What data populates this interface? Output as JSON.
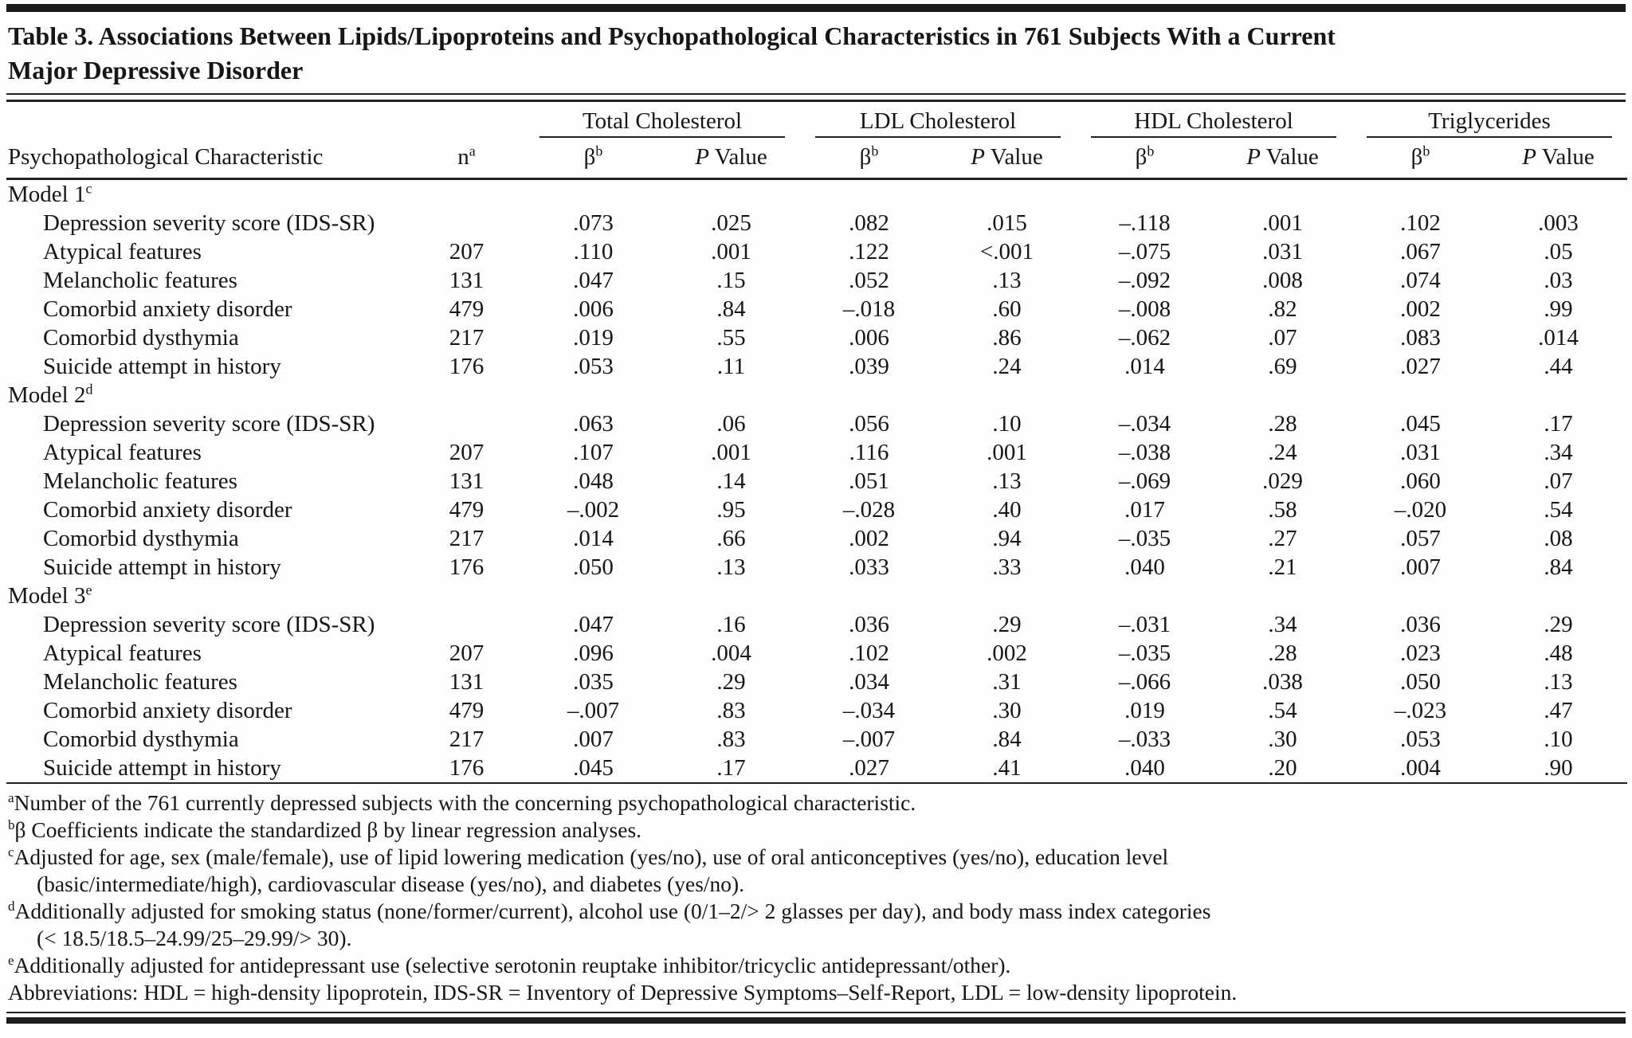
{
  "title": {
    "line1": "Table 3. Associations Between Lipids/Lipoproteins and Psychopathological Characteristics in 761 Subjects With a Current",
    "line2": "Major Depressive Disorder"
  },
  "header": {
    "characteristic": "Psychopathological Characteristic",
    "n_label": "n",
    "n_sup": "a",
    "beta_label": "β",
    "beta_sup": "b",
    "p_italic": "P",
    "p_rest": " Value",
    "groups": [
      "Total Cholesterol",
      "LDL Cholesterol",
      "HDL Cholesterol",
      "Triglycerides"
    ]
  },
  "chart_data": {
    "type": "table",
    "columns": [
      "Psychopathological Characteristic",
      "n",
      "Total Cholesterol β",
      "Total Cholesterol P Value",
      "LDL Cholesterol β",
      "LDL Cholesterol P Value",
      "HDL Cholesterol β",
      "HDL Cholesterol P Value",
      "Triglycerides β",
      "Triglycerides P Value"
    ]
  },
  "sections": [
    {
      "label": "Model 1",
      "sup": "c",
      "rows": [
        {
          "name": "Depression severity score (IDS-SR)",
          "n": "",
          "values": [
            ".073",
            ".025",
            ".082",
            ".015",
            "–.118",
            ".001",
            ".102",
            ".003"
          ]
        },
        {
          "name": "Atypical features",
          "n": "207",
          "values": [
            ".110",
            ".001",
            ".122",
            "<.001",
            "–.075",
            ".031",
            ".067",
            ".05"
          ]
        },
        {
          "name": "Melancholic features",
          "n": "131",
          "values": [
            ".047",
            ".15",
            ".052",
            ".13",
            "–.092",
            ".008",
            ".074",
            ".03"
          ]
        },
        {
          "name": "Comorbid anxiety disorder",
          "n": "479",
          "values": [
            ".006",
            ".84",
            "–.018",
            ".60",
            "–.008",
            ".82",
            ".002",
            ".99"
          ]
        },
        {
          "name": "Comorbid dysthymia",
          "n": "217",
          "values": [
            ".019",
            ".55",
            ".006",
            ".86",
            "–.062",
            ".07",
            ".083",
            ".014"
          ]
        },
        {
          "name": "Suicide attempt in history",
          "n": "176",
          "values": [
            ".053",
            ".11",
            ".039",
            ".24",
            ".014",
            ".69",
            ".027",
            ".44"
          ]
        }
      ]
    },
    {
      "label": "Model 2",
      "sup": "d",
      "rows": [
        {
          "name": "Depression severity score (IDS-SR)",
          "n": "",
          "values": [
            ".063",
            ".06",
            ".056",
            ".10",
            "–.034",
            ".28",
            ".045",
            ".17"
          ]
        },
        {
          "name": "Atypical features",
          "n": "207",
          "values": [
            ".107",
            ".001",
            ".116",
            ".001",
            "–.038",
            ".24",
            ".031",
            ".34"
          ]
        },
        {
          "name": "Melancholic features",
          "n": "131",
          "values": [
            ".048",
            ".14",
            ".051",
            ".13",
            "–.069",
            ".029",
            ".060",
            ".07"
          ]
        },
        {
          "name": "Comorbid anxiety disorder",
          "n": "479",
          "values": [
            "–.002",
            ".95",
            "–.028",
            ".40",
            ".017",
            ".58",
            "–.020",
            ".54"
          ]
        },
        {
          "name": "Comorbid dysthymia",
          "n": "217",
          "values": [
            ".014",
            ".66",
            ".002",
            ".94",
            "–.035",
            ".27",
            ".057",
            ".08"
          ]
        },
        {
          "name": "Suicide attempt in history",
          "n": "176",
          "values": [
            ".050",
            ".13",
            ".033",
            ".33",
            ".040",
            ".21",
            ".007",
            ".84"
          ]
        }
      ]
    },
    {
      "label": "Model 3",
      "sup": "e",
      "rows": [
        {
          "name": "Depression severity score (IDS-SR)",
          "n": "",
          "values": [
            ".047",
            ".16",
            ".036",
            ".29",
            "–.031",
            ".34",
            ".036",
            ".29"
          ]
        },
        {
          "name": "Atypical features",
          "n": "207",
          "values": [
            ".096",
            ".004",
            ".102",
            ".002",
            "–.035",
            ".28",
            ".023",
            ".48"
          ]
        },
        {
          "name": "Melancholic features",
          "n": "131",
          "values": [
            ".035",
            ".29",
            ".034",
            ".31",
            "–.066",
            ".038",
            ".050",
            ".13"
          ]
        },
        {
          "name": "Comorbid anxiety disorder",
          "n": "479",
          "values": [
            "–.007",
            ".83",
            "–.034",
            ".30",
            ".019",
            ".54",
            "–.023",
            ".47"
          ]
        },
        {
          "name": "Comorbid dysthymia",
          "n": "217",
          "values": [
            ".007",
            ".83",
            "–.007",
            ".84",
            "–.033",
            ".30",
            ".053",
            ".10"
          ]
        },
        {
          "name": "Suicide attempt in history",
          "n": "176",
          "values": [
            ".045",
            ".17",
            ".027",
            ".41",
            ".040",
            ".20",
            ".004",
            ".90"
          ]
        }
      ]
    }
  ],
  "footnotes": [
    {
      "sup": "a",
      "lines": [
        "Number of the 761 currently depressed subjects with the concerning psychopathological characteristic."
      ]
    },
    {
      "sup": "b",
      "lines": [
        "β Coefficients indicate the standardized β by linear regression analyses."
      ]
    },
    {
      "sup": "c",
      "lines": [
        "Adjusted for age, sex (male/female), use of lipid lowering medication (yes/no), use of oral anticonceptives (yes/no), education level",
        "(basic/intermediate/high), cardiovascular disease (yes/no), and diabetes (yes/no)."
      ]
    },
    {
      "sup": "d",
      "lines": [
        "Additionally adjusted for smoking status (none/former/current), alcohol use (0/1–2/> 2 glasses per day), and body mass index categories",
        "(< 18.5/18.5–24.99/25–29.99/> 30)."
      ]
    },
    {
      "sup": "e",
      "lines": [
        "Additionally adjusted for antidepressant use (selective serotonin reuptake inhibitor/tricyclic antidepressant/other)."
      ]
    },
    {
      "sup": "",
      "lines": [
        "Abbreviations: HDL = high-density lipoprotein, IDS-SR = Inventory of Depressive Symptoms–Self-Report, LDL = low-density lipoprotein."
      ]
    }
  ]
}
